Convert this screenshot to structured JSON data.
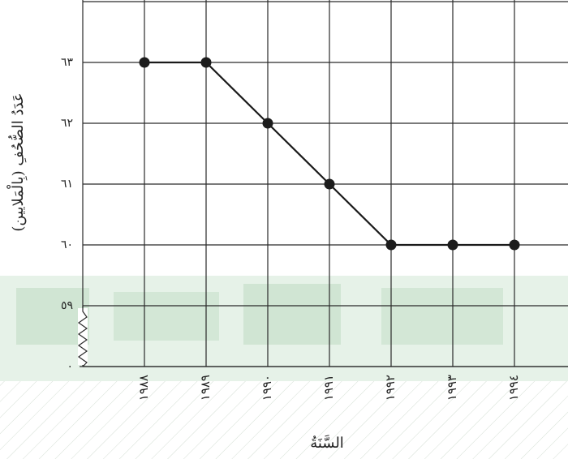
{
  "chart_data": {
    "type": "line",
    "x": [
      "١٩٨٨",
      "١٩٨٩",
      "١٩٩٠",
      "١٩٩١",
      "١٩٩٢",
      "١٩٩٣",
      "١٩٩٤"
    ],
    "values": [
      63,
      63,
      62,
      61,
      60,
      60,
      60
    ],
    "xlabel": "السَّنَةُ",
    "ylabel": "عَدَدُ الصُّحُفِ (بِالْمَلايين)",
    "yticks": [
      "٠",
      "٥٩",
      "٦٠",
      "٦١",
      "٦٢",
      "٦٣"
    ],
    "ylim": [
      58,
      64
    ],
    "axis_break": "y-axis between 0 and 59",
    "grid": true,
    "colors": {
      "line": "#1a1a1a",
      "grid": "#2a2a2a",
      "background_band": "#2e8b3e"
    }
  }
}
